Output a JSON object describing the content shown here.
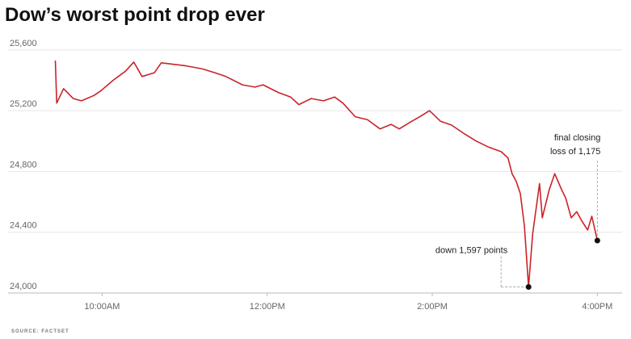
{
  "chart_data": {
    "type": "line",
    "title": "Dow’s worst point drop ever",
    "source": "SOURCE: FACTSET",
    "color": "#cc2229",
    "x": [
      566,
      567,
      572,
      579,
      585,
      594,
      599,
      608,
      617,
      623,
      629,
      638,
      643,
      652,
      661,
      673,
      682,
      690,
      702,
      711,
      717,
      728,
      737,
      743,
      752,
      761,
      769,
      775,
      784,
      793,
      802,
      810,
      816,
      825,
      831,
      838,
      846,
      854,
      863,
      872,
      881,
      890,
      895,
      898,
      901,
      904,
      907,
      910,
      913,
      918,
      920,
      925,
      929,
      934,
      937,
      941,
      945,
      949,
      953,
      956,
      960
    ],
    "values": [
      25530,
      25250,
      25345,
      25280,
      25265,
      25300,
      25330,
      25400,
      25460,
      25520,
      25425,
      25450,
      25515,
      25505,
      25495,
      25475,
      25450,
      25425,
      25370,
      25355,
      25370,
      25320,
      25290,
      25240,
      25280,
      25265,
      25290,
      25250,
      25160,
      25140,
      25080,
      25110,
      25080,
      25130,
      25160,
      25200,
      25130,
      25105,
      25050,
      25000,
      24960,
      24930,
      24890,
      24785,
      24735,
      24655,
      24440,
      24040,
      24390,
      24720,
      24495,
      24680,
      24785,
      24680,
      24625,
      24495,
      24535,
      24470,
      24415,
      24505,
      24345
    ],
    "xlim": [
      561,
      978
    ],
    "xticks": [
      {
        "value": 600,
        "label": "10:00AM"
      },
      {
        "value": 720,
        "label": "12:00PM"
      },
      {
        "value": 840,
        "label": "2:00PM"
      },
      {
        "value": 960,
        "label": "4:00PM"
      }
    ],
    "ylim": [
      24000,
      25700
    ],
    "yticks": [
      {
        "value": 24000,
        "label": "24,000"
      },
      {
        "value": 24400,
        "label": "24,400"
      },
      {
        "value": 24800,
        "label": "24,800"
      },
      {
        "value": 25200,
        "label": "25,200"
      },
      {
        "value": 25600,
        "label": "25,600"
      }
    ],
    "grid": true,
    "annotations": [
      "down 1,597 points",
      [
        "final closing",
        "loss of 1,175"
      ]
    ]
  }
}
